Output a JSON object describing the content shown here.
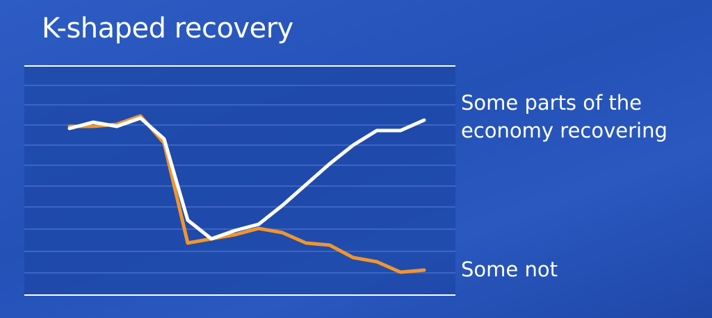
{
  "chart_data": {
    "type": "line",
    "title": "K-shaped recovery",
    "categories": [
      null,
      null,
      null,
      null,
      null,
      null,
      null,
      null,
      null,
      null,
      null,
      null,
      null,
      null,
      null,
      null
    ],
    "ylim": [
      0,
      11
    ],
    "series": [
      {
        "name": "Some parts of the economy recovering",
        "color": "#ffffff",
        "values": [
          8.0,
          8.3,
          8.1,
          8.5,
          7.5,
          3.6,
          2.7,
          3.1,
          3.4,
          4.3,
          5.3,
          6.3,
          7.2,
          7.9,
          7.9,
          8.4
        ]
      },
      {
        "name": "Some not",
        "color": "#f0962e",
        "values": [
          8.1,
          8.1,
          8.2,
          8.6,
          7.3,
          2.5,
          2.7,
          2.9,
          3.2,
          3.0,
          2.5,
          2.4,
          1.8,
          1.6,
          1.1,
          1.2
        ]
      }
    ]
  }
}
